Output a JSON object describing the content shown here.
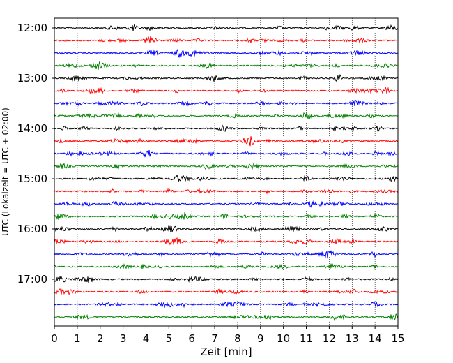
{
  "chart_data": {
    "type": "line",
    "title": "",
    "xlabel": "Zeit  [min]",
    "ylabel": "UTC (Lokalzeit = UTC + 02:00)",
    "xlim": [
      0,
      15
    ],
    "x_ticks": [
      "0",
      "1",
      "2",
      "3",
      "4",
      "5",
      "6",
      "7",
      "8",
      "9",
      "10",
      "11",
      "12",
      "13",
      "14",
      "15"
    ],
    "y_ticks": [
      "12:00",
      "13:00",
      "14:00",
      "15:00",
      "16:00",
      "17:00"
    ],
    "grid": "vertical dotted",
    "trace_interval_minutes": 15,
    "trace_start": "12:00",
    "trace_count": 24,
    "trace_colors": [
      "#000000",
      "#ff0000",
      "#0000ff",
      "#008000"
    ]
  }
}
